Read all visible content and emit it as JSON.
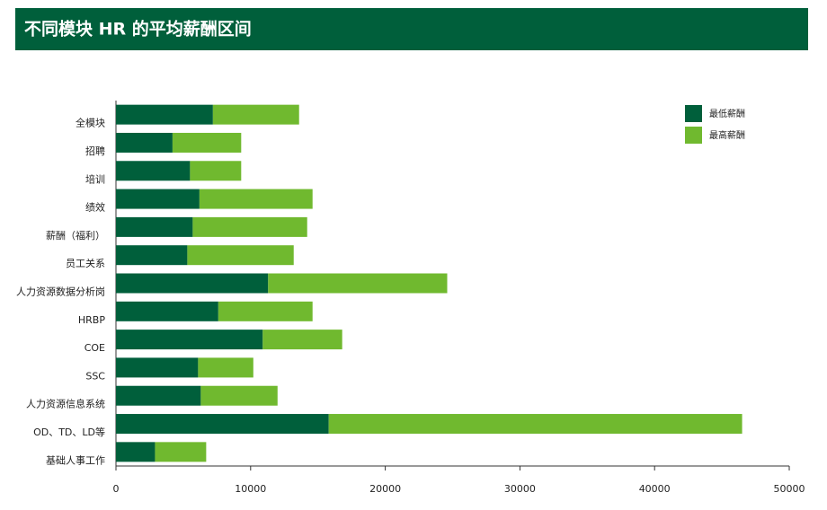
{
  "chart_data": {
    "type": "stacked_barh",
    "title": "不同模块 HR 的平均薪酬区间",
    "categories": [
      "全模块",
      "招聘",
      "培训",
      "绩效",
      "薪酬（福利）",
      "员工关系",
      "人力资源数据分析岗",
      "HRBP",
      "COE",
      "SSC",
      "人力资源信息系统",
      "OD、TD、LD等",
      "基础人事工作"
    ],
    "series": [
      {
        "name": "最低薪酬",
        "color": "#005f3b",
        "values": [
          7200,
          4200,
          5500,
          6200,
          5700,
          5300,
          11300,
          7600,
          10900,
          6100,
          6300,
          15800,
          2900
        ]
      },
      {
        "name": "最高薪酬",
        "color": "#70b92f",
        "values": [
          6400,
          5100,
          3800,
          8400,
          8500,
          7900,
          13300,
          7000,
          5900,
          4100,
          5700,
          30700,
          3800
        ]
      }
    ],
    "xlim": [
      0,
      50000
    ],
    "xticks": [
      0,
      10000,
      20000,
      30000,
      40000,
      50000
    ],
    "legend": "top-right"
  }
}
